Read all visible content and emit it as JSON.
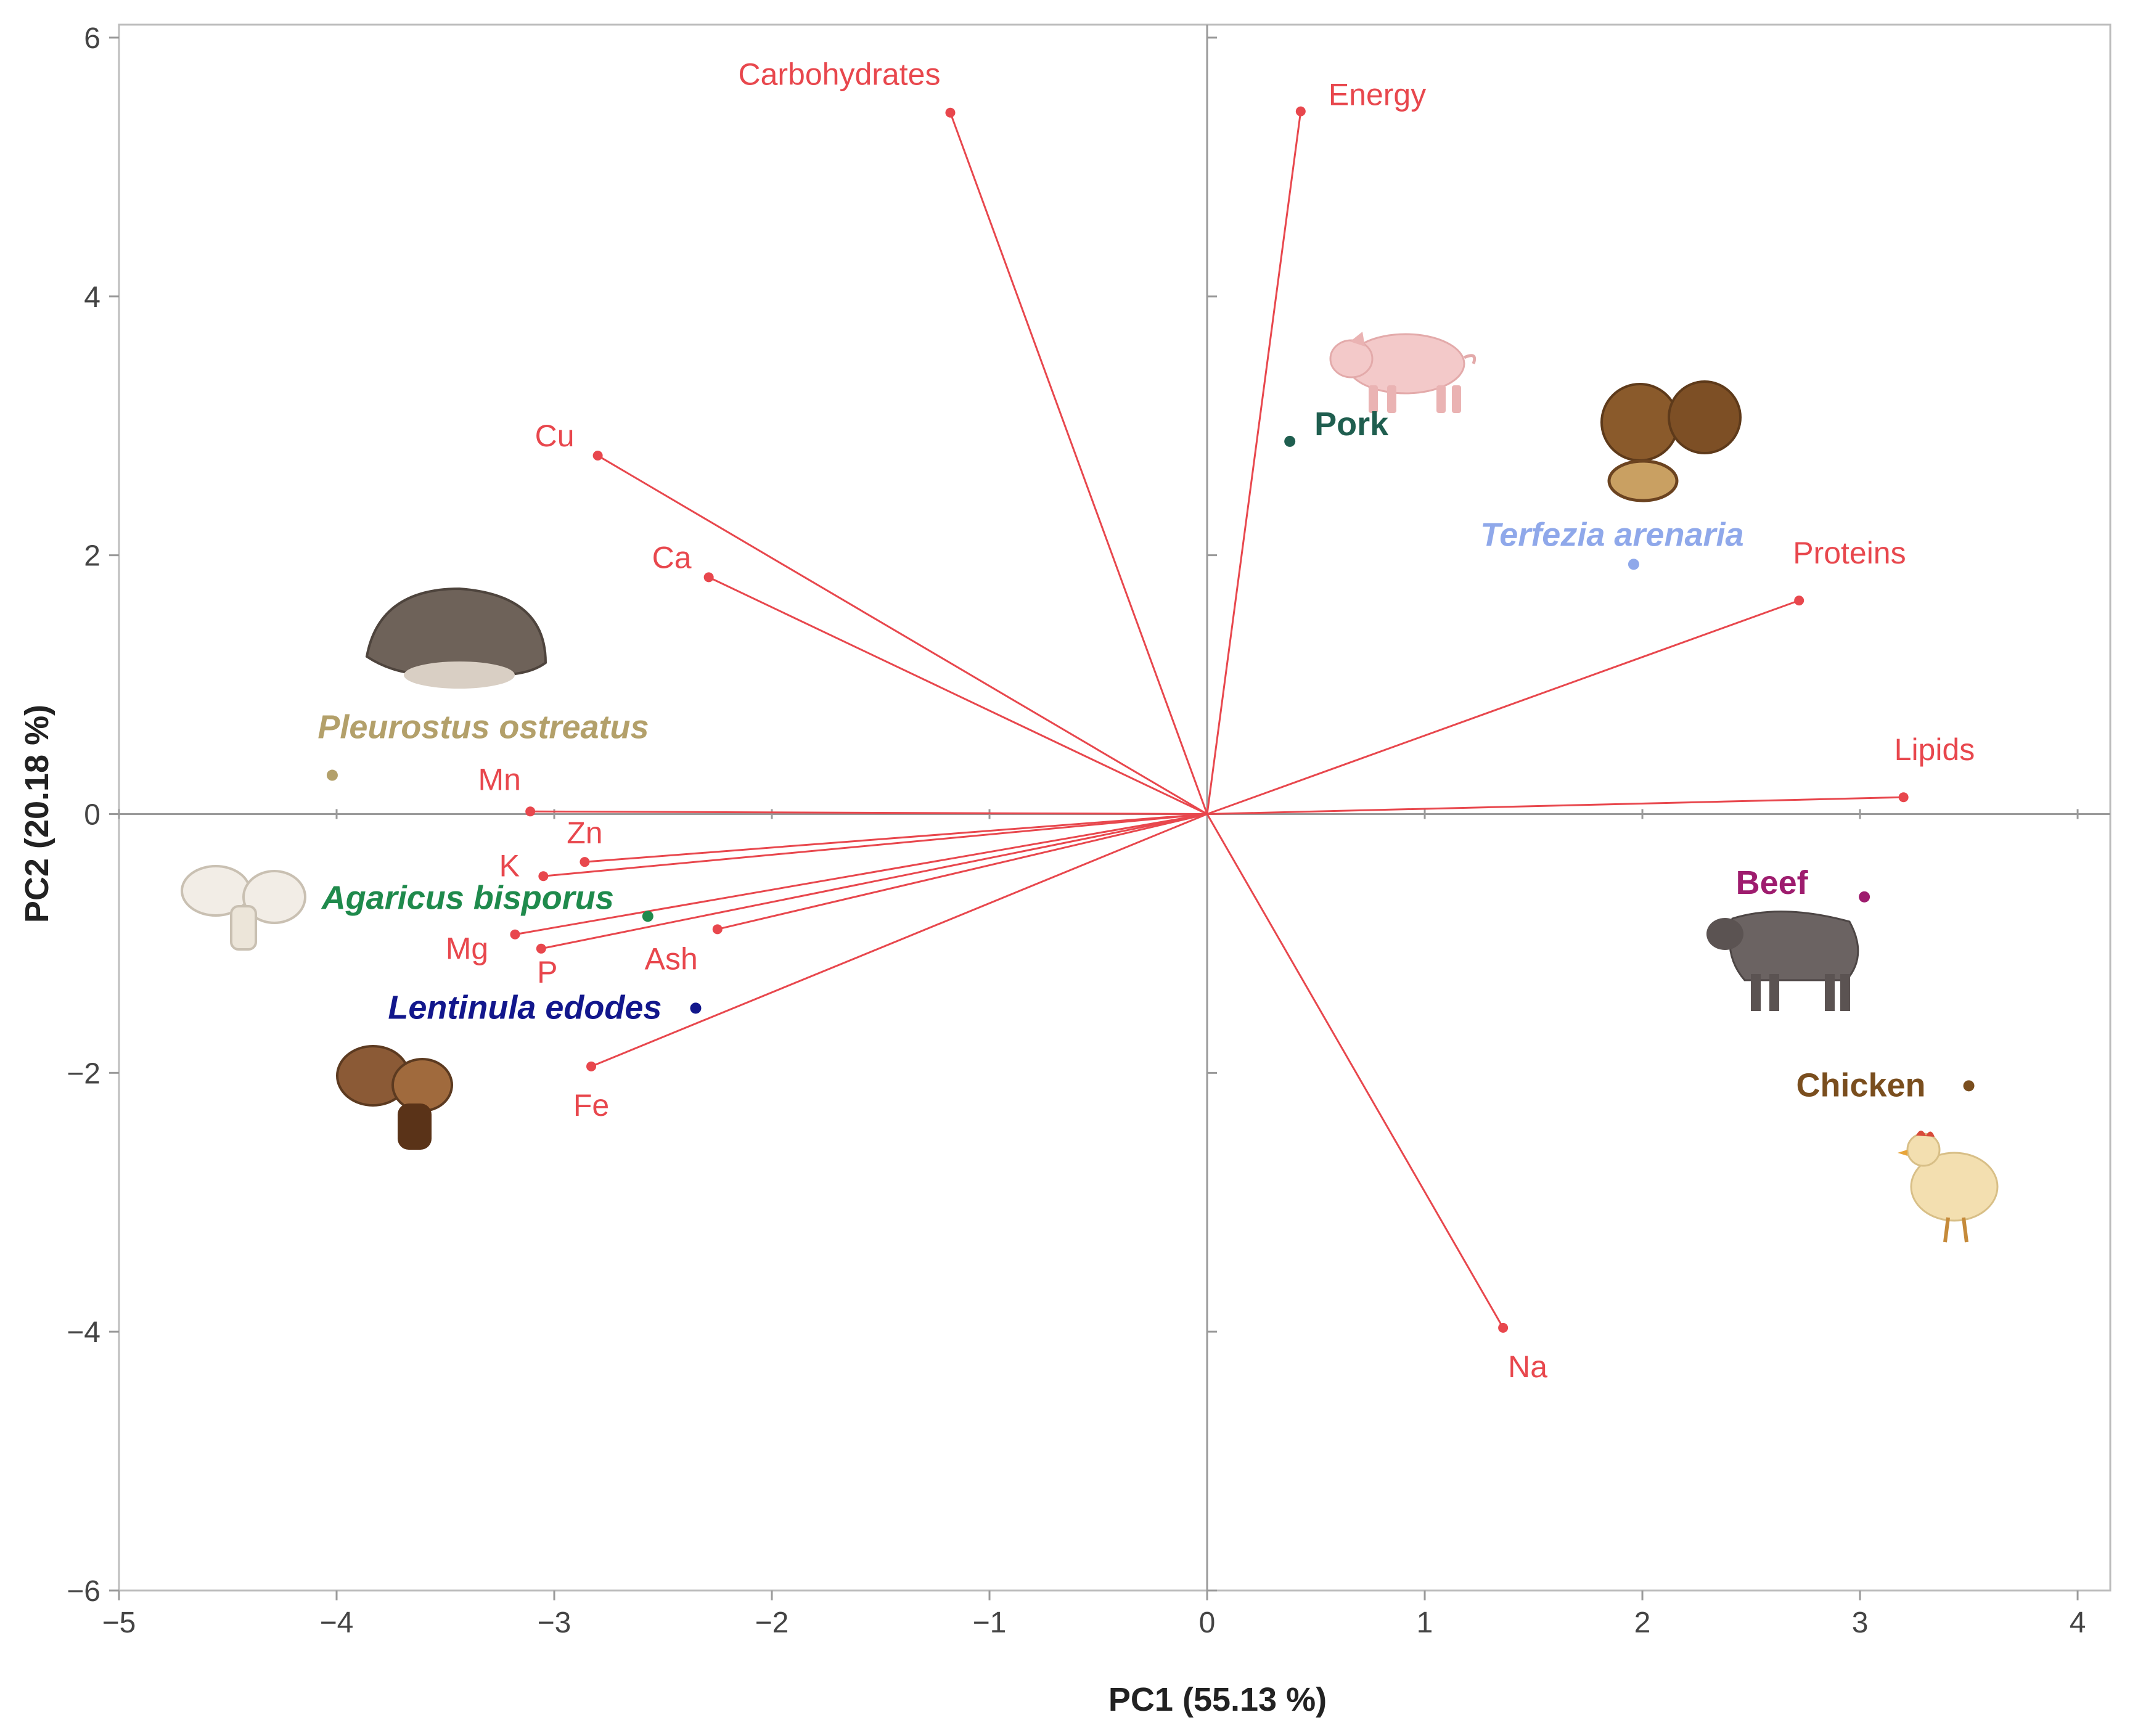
{
  "chart_data": {
    "type": "scatter",
    "subtype": "pca-biplot",
    "xlabel": "PC1 (55.13 %)",
    "ylabel": "PC2 (20.18 %)",
    "xlim": [
      -5,
      4.15
    ],
    "ylim": [
      -6,
      6.1
    ],
    "x_ticks": [
      -5,
      -4,
      -3,
      -2,
      -1,
      0,
      1,
      2,
      3,
      4
    ],
    "y_ticks": [
      -6,
      -4,
      -2,
      0,
      2,
      4,
      6
    ],
    "x_tick_labels": [
      "−5",
      "−4",
      "−3",
      "−2",
      "−1",
      "0",
      "1",
      "2",
      "3",
      "4"
    ],
    "y_tick_labels": [
      "−6",
      "−4",
      "−2",
      "0",
      "2",
      "4",
      "6"
    ],
    "grid": false,
    "zero_lines": true,
    "vector_color": "#e8474d",
    "loadings": [
      {
        "name": "Carbohydrates",
        "x": -1.18,
        "y": 5.42
      },
      {
        "name": "Energy",
        "x": 0.43,
        "y": 5.43
      },
      {
        "name": "Cu",
        "x": -2.8,
        "y": 2.77
      },
      {
        "name": "Ca",
        "x": -2.29,
        "y": 1.83
      },
      {
        "name": "Proteins",
        "x": 2.72,
        "y": 1.65
      },
      {
        "name": "Lipids",
        "x": 3.2,
        "y": 0.13
      },
      {
        "name": "Mn",
        "x": -3.11,
        "y": 0.02
      },
      {
        "name": "Zn",
        "x": -2.86,
        "y": -0.37
      },
      {
        "name": "K",
        "x": -3.05,
        "y": -0.48
      },
      {
        "name": "Mg",
        "x": -3.18,
        "y": -0.93
      },
      {
        "name": "P",
        "x": -3.06,
        "y": -1.04
      },
      {
        "name": "Ash",
        "x": -2.25,
        "y": -0.89
      },
      {
        "name": "Fe",
        "x": -2.83,
        "y": -1.95
      },
      {
        "name": "Na",
        "x": 1.36,
        "y": -3.97
      }
    ],
    "scores": [
      {
        "name": "Pork",
        "x": 0.38,
        "y": 2.88,
        "color": "#1f5e4f",
        "italic": false
      },
      {
        "name": "Terfezia arenaria",
        "x": 1.96,
        "y": 1.93,
        "color": "#8fa8ea",
        "italic": true
      },
      {
        "name": "Pleurostus ostreatus",
        "x": -4.02,
        "y": 0.3,
        "color": "#b3a06a",
        "italic": true
      },
      {
        "name": "Agaricus bisporus",
        "x": -2.57,
        "y": -0.79,
        "color": "#1f8a4c",
        "italic": true
      },
      {
        "name": "Lentinula edodes",
        "x": -2.35,
        "y": -1.5,
        "color": "#12178c",
        "italic": true
      },
      {
        "name": "Beef",
        "x": 3.02,
        "y": -0.64,
        "color": "#9e1c6e",
        "italic": false
      },
      {
        "name": "Chicken",
        "x": 3.5,
        "y": -2.1,
        "color": "#7a4e1e",
        "italic": false
      }
    ]
  },
  "illustrations": [
    {
      "name": "pig-icon",
      "color": "#f3c9c9"
    },
    {
      "name": "terfezia-truffles-icon",
      "color": "#8a5a2b"
    },
    {
      "name": "oyster-mushroom-icon",
      "color": "#6e6259"
    },
    {
      "name": "button-mushroom-icon",
      "color": "#f2ede6"
    },
    {
      "name": "shiitake-mushroom-icon",
      "color": "#8b5a36"
    },
    {
      "name": "cow-icon",
      "color": "#6b6362"
    },
    {
      "name": "chicken-icon",
      "color": "#f3dfb0"
    }
  ]
}
